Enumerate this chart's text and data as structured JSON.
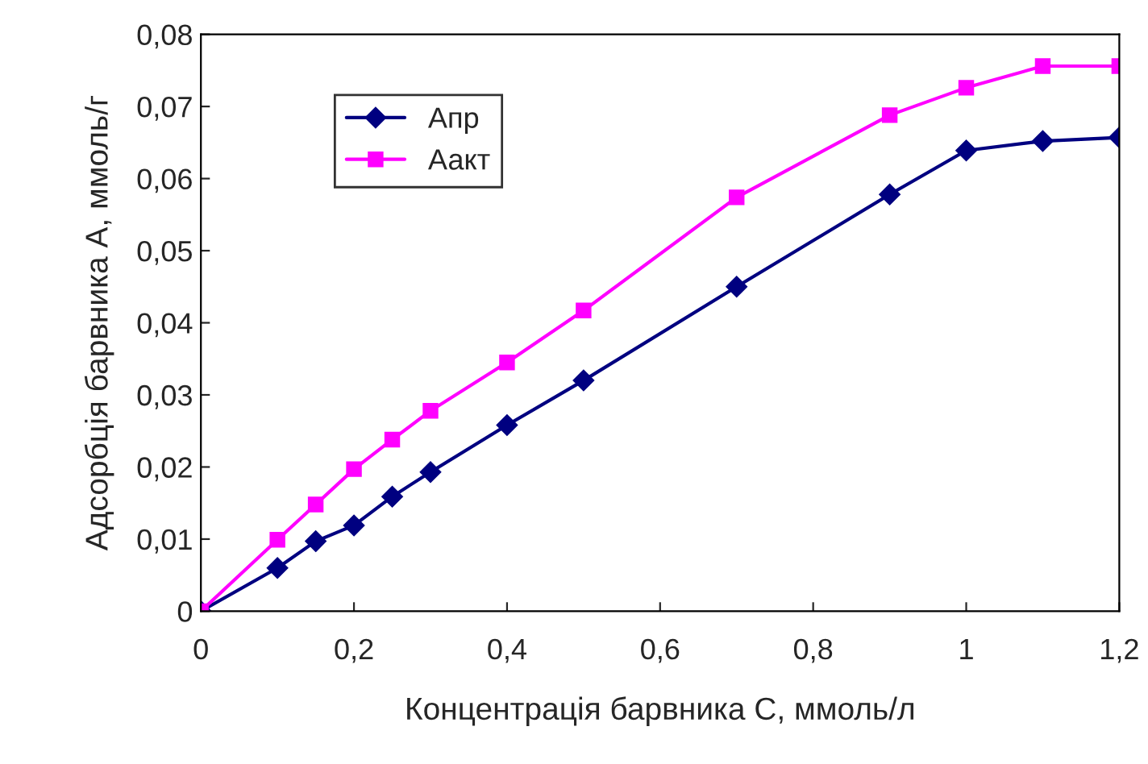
{
  "chart_data": {
    "type": "line",
    "xlabel": "Концентрація барвника С, ммоль/л",
    "ylabel": "Адсорбція барвника А, ммоль/г",
    "x": [
      0,
      0.1,
      0.15,
      0.2,
      0.25,
      0.3,
      0.4,
      0.5,
      0.7,
      0.9,
      1.0,
      1.1,
      1.2
    ],
    "series": [
      {
        "name": "Апр",
        "color": "#000080",
        "marker": "diamond",
        "values": [
          0,
          0.006,
          0.0097,
          0.0119,
          0.0159,
          0.0193,
          0.0258,
          0.032,
          0.045,
          0.0578,
          0.0639,
          0.0652,
          0.0657
        ]
      },
      {
        "name": "Аакт",
        "color": "#ff00ff",
        "marker": "square",
        "values": [
          0,
          0.0099,
          0.0148,
          0.0197,
          0.0238,
          0.0278,
          0.0345,
          0.0417,
          0.0574,
          0.0688,
          0.0726,
          0.0756,
          0.0756
        ]
      }
    ],
    "xlim": [
      0,
      1.2
    ],
    "ylim": [
      0,
      0.08
    ],
    "xticks": [
      0,
      {
        "value": 0.2,
        "label": "0,2"
      },
      {
        "value": 0.4,
        "label": "0,4"
      },
      {
        "value": 0.6,
        "label": "0,6"
      },
      {
        "value": 0.8,
        "label": "0,8"
      },
      1,
      {
        "value": 1.2,
        "label": "1,2"
      }
    ],
    "yticks": [
      0,
      {
        "value": 0.01,
        "label": "0,01"
      },
      {
        "value": 0.02,
        "label": "0,02"
      },
      {
        "value": 0.03,
        "label": "0,03"
      },
      {
        "value": 0.04,
        "label": "0,04"
      },
      {
        "value": 0.05,
        "label": "0,05"
      },
      {
        "value": 0.06,
        "label": "0,06"
      },
      {
        "value": 0.07,
        "label": "0,07"
      },
      {
        "value": 0.08,
        "label": "0,08"
      }
    ],
    "grid": false,
    "legend": "top left",
    "line_style": "solid"
  }
}
